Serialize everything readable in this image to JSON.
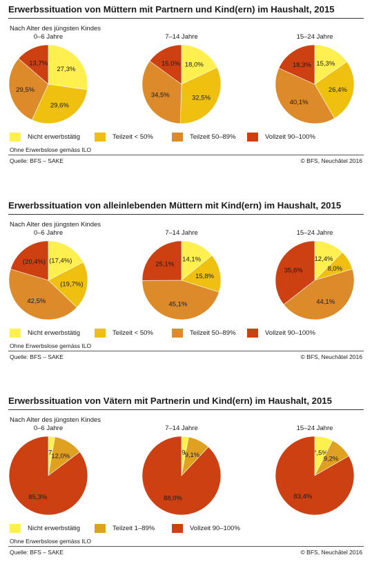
{
  "colors": {
    "nicht": "#fff050",
    "teil_low": "#f0c010",
    "teil_mid": "#dc8a2a",
    "voll": "#cc4012",
    "vaeter_teil": "#e0a020"
  },
  "chart_data": [
    {
      "type": "pie",
      "title": "Erwerbssituation von Müttern mit Partnern und Kind(ern) im Haushalt, 2015",
      "subtitle": "Nach Alter des jüngsten Kindes",
      "legend": [
        {
          "label": "Nicht erwerbstätig",
          "color": "#fff050"
        },
        {
          "label": "Teilzeit < 50%",
          "color": "#f0c010"
        },
        {
          "label": "Teilzeit 50–89%",
          "color": "#dc8a2a"
        },
        {
          "label": "Vollzeit 90–100%",
          "color": "#cc4012"
        }
      ],
      "note": "Ohne Erwerbslose gemäss ILO",
      "source": "Quelle: BFS – SAKE",
      "copyright": "© BFS, Neuchâtel 2016",
      "pies": [
        {
          "label": "0–6 Jahre",
          "values": [
            27.3,
            29.6,
            29.5,
            13.7
          ],
          "labels": [
            "27,3%",
            "29,6%",
            "29,5%",
            "13,7%"
          ]
        },
        {
          "label": "7–14 Jahre",
          "values": [
            18.0,
            32.5,
            34.5,
            15.0
          ],
          "labels": [
            "18,0%",
            "32,5%",
            "34,5%",
            "15,0%"
          ]
        },
        {
          "label": "15–24 Jahre",
          "values": [
            15.3,
            26.4,
            40.1,
            18.3
          ],
          "labels": [
            "15,3%",
            "26,4%",
            "40,1%",
            "18,3%"
          ]
        }
      ]
    },
    {
      "type": "pie",
      "title": "Erwerbssituation von alleinlebenden Müttern mit Kind(ern) im Haushalt, 2015",
      "subtitle": "Nach Alter des jüngsten Kindes",
      "legend": [
        {
          "label": "Nicht erwerbstätig",
          "color": "#fff050"
        },
        {
          "label": "Teilzeit < 50%",
          "color": "#f0c010"
        },
        {
          "label": "Teilzeit 50–89%",
          "color": "#dc8a2a"
        },
        {
          "label": "Vollzeit 90–100%",
          "color": "#cc4012"
        }
      ],
      "note": "Ohne Erwerbslose gemäss ILO",
      "source": "Quelle: BFS – SAKE",
      "copyright": "© BFS, Neuchâtel 2016",
      "pies": [
        {
          "label": "0–6 Jahre",
          "values": [
            17.4,
            19.7,
            42.5,
            20.4
          ],
          "labels": [
            "(17,4%)",
            "(19,7%)",
            "42,5%",
            "(20,4%)"
          ]
        },
        {
          "label": "7–14 Jahre",
          "values": [
            14.1,
            15.8,
            45.1,
            25.1
          ],
          "labels": [
            "14,1%",
            "15,8%",
            "45,1%",
            "25,1%"
          ]
        },
        {
          "label": "15–24 Jahre",
          "values": [
            12.4,
            8.0,
            44.1,
            35.6
          ],
          "labels": [
            "12,4%",
            "8,0%",
            "44,1%",
            "35,6%"
          ]
        }
      ]
    },
    {
      "type": "pie",
      "title": "Erwerbssituation von Vätern mit Partnerin und Kind(ern) im Haushalt, 2015",
      "subtitle": "Nach Alter des jüngsten Kindes",
      "legend": [
        {
          "label": "Nicht erwerbstätig",
          "color": "#fff050"
        },
        {
          "label": "Teilzeit 1–89%",
          "color": "#e0a020"
        },
        {
          "label": "Vollzeit 90–100%",
          "color": "#cc4012"
        }
      ],
      "note": "Ohne Erwerbslose gemäss ILO",
      "source": "Quelle: BFS – SAKE",
      "copyright": "© BFS, Neuchâtel 2016",
      "pies": [
        {
          "label": "0–6 Jahre",
          "values": [
            2.7,
            12.0,
            85.3
          ],
          "labels": [
            "2,7%",
            "12,0%",
            "85,3%"
          ]
        },
        {
          "label": "7–14 Jahre",
          "values": [
            2.9,
            9.1,
            88.0
          ],
          "labels": [
            "2,9%",
            "9,1%",
            "88,0%"
          ]
        },
        {
          "label": "15–24 Jahre",
          "values": [
            7.5,
            9.2,
            83.4
          ],
          "labels": [
            "7,5%",
            "9,2%",
            "83,4%"
          ]
        }
      ]
    }
  ]
}
